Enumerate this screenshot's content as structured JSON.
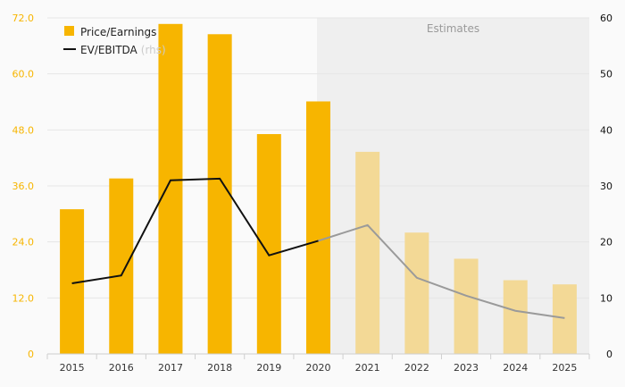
{
  "chart_data": {
    "type": "bar",
    "categories": [
      "2015",
      "2016",
      "2017",
      "2018",
      "2019",
      "2020",
      "2021",
      "2022",
      "2023",
      "2024",
      "2025"
    ],
    "estimates_from": "2021",
    "estimates_label": "Estimates",
    "series": [
      {
        "name": "Price/Earnings",
        "type": "bar",
        "axis": "left",
        "values": [
          31.0,
          37.6,
          70.7,
          68.5,
          47.1,
          54.1,
          43.3,
          26.0,
          20.4,
          15.8,
          14.9
        ],
        "color": "#f7b500",
        "estimate_color": "#f3d996"
      },
      {
        "name": "EV/EBITDA",
        "type": "line",
        "axis": "right",
        "values": [
          12.6,
          14.0,
          31.0,
          31.3,
          17.6,
          20.2,
          23.0,
          13.6,
          10.4,
          7.7,
          6.4
        ],
        "color": "#111111",
        "estimate_color": "#9a9a9a"
      }
    ],
    "legend": [
      {
        "label": "Price/Earnings",
        "suffix": ""
      },
      {
        "label": "EV/EBITDA",
        "suffix": "(rhs)"
      }
    ],
    "left_axis": {
      "min": 0,
      "max": 72,
      "ticks": [
        0,
        12.0,
        24.0,
        36.0,
        48.0,
        60.0,
        72.0
      ],
      "tick_labels": [
        "0",
        "12.0",
        "24.0",
        "36.0",
        "48.0",
        "60.0",
        "72.0"
      ],
      "color": "#f7b500"
    },
    "right_axis": {
      "min": 0,
      "max": 60,
      "ticks": [
        0,
        10,
        20,
        30,
        40,
        50,
        60
      ],
      "tick_labels": [
        "0",
        "10",
        "20",
        "30",
        "40",
        "50",
        "60"
      ],
      "color": "#111111"
    },
    "grid": true,
    "legend_position": "top-left"
  }
}
